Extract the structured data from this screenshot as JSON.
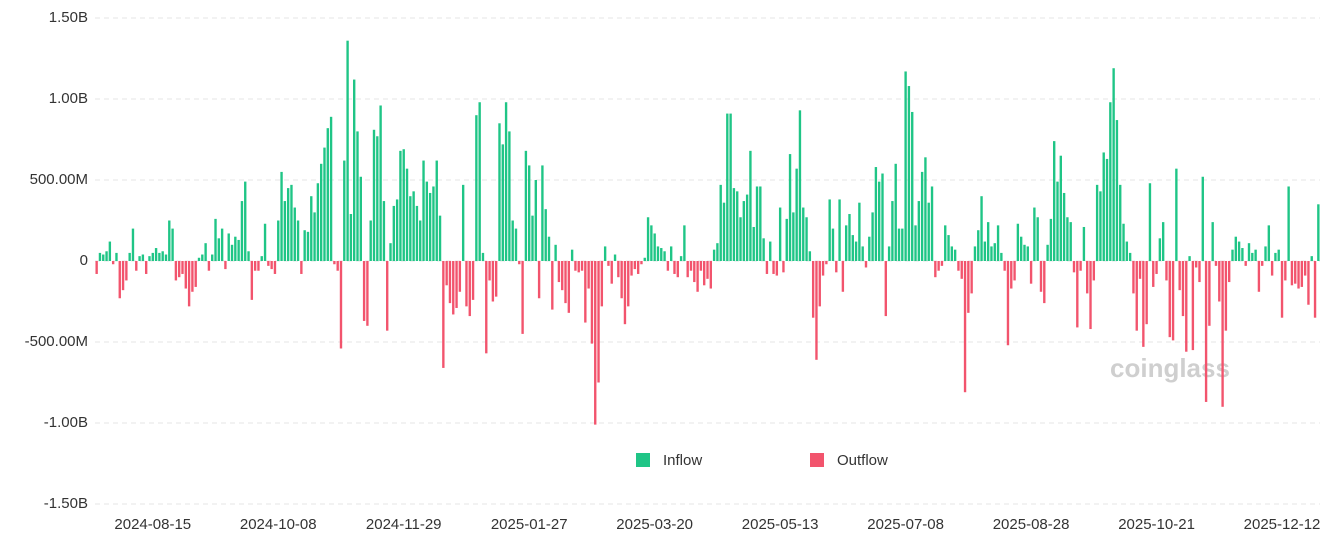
{
  "chart_data": {
    "type": "bar",
    "watermark": "coinglass",
    "legend": [
      {
        "name": "Inflow",
        "color": "#1fc586"
      },
      {
        "name": "Outflow",
        "color": "#f2546d"
      }
    ],
    "ylim": [
      -1500,
      1500
    ],
    "yticks": [
      {
        "value": 1500,
        "label": "1.50B"
      },
      {
        "value": 1000,
        "label": "1.00B"
      },
      {
        "value": 500,
        "label": "500.00M"
      },
      0,
      {
        "value": -500,
        "label": "-500.00M"
      },
      {
        "value": -1000,
        "label": "-1.00B"
      },
      {
        "value": -1500,
        "label": "-1.50B"
      }
    ],
    "grid": true,
    "categories": [
      null,
      null,
      null,
      null,
      null,
      null,
      null,
      null,
      null,
      null,
      null,
      null,
      null,
      null,
      null,
      null,
      null,
      "2024-08-15",
      null,
      null,
      null,
      null,
      null,
      null,
      null,
      null,
      null,
      null,
      null,
      null,
      null,
      null,
      null,
      null,
      null,
      null,
      null,
      null,
      null,
      null,
      null,
      null,
      null,
      null,
      null,
      null,
      null,
      null,
      null,
      null,
      null,
      null,
      null,
      null,
      null,
      "2024-10-08",
      null,
      null,
      null,
      null,
      null,
      null,
      null,
      null,
      null,
      null,
      null,
      null,
      null,
      null,
      null,
      null,
      null,
      null,
      null,
      null,
      null,
      null,
      null,
      null,
      null,
      null,
      null,
      null,
      null,
      null,
      null,
      null,
      null,
      null,
      null,
      null,
      null,
      "2024-11-29",
      null,
      null,
      null,
      null,
      null,
      null,
      null,
      null,
      null,
      null,
      null,
      null,
      null,
      null,
      null,
      null,
      null,
      null,
      null,
      null,
      null,
      null,
      null,
      null,
      null,
      null,
      null,
      null,
      null,
      null,
      null,
      null,
      null,
      null,
      null,
      null,
      null,
      "2025-01-27",
      null,
      null,
      null,
      null,
      null,
      null,
      null,
      null,
      null,
      null,
      null,
      null,
      null,
      null,
      null,
      null,
      null,
      null,
      null,
      null,
      null,
      null,
      null,
      null,
      null,
      null,
      null,
      null,
      null,
      null,
      null,
      null,
      null,
      null,
      null,
      null,
      null,
      "2025-03-20",
      null,
      null,
      null,
      null,
      null,
      null,
      null,
      null,
      null,
      null,
      null,
      null,
      null,
      null,
      null,
      null,
      null,
      null,
      null,
      null,
      null,
      null,
      null,
      null,
      null,
      null,
      null,
      null,
      null,
      null,
      null,
      null,
      null,
      null,
      null,
      null,
      null,
      "2025-05-13",
      null,
      null,
      null,
      null,
      null,
      null,
      null,
      null,
      null,
      null,
      null,
      null,
      null,
      null,
      null,
      null,
      null,
      null,
      null,
      null,
      null,
      null,
      null,
      null,
      null,
      null,
      null,
      null,
      null,
      null,
      null,
      null,
      null,
      null,
      null,
      null,
      null,
      "2025-07-08",
      null,
      null,
      null,
      null,
      null,
      null,
      null,
      null,
      null,
      null,
      null,
      null,
      null,
      null,
      null,
      null,
      null,
      null,
      null,
      null,
      null,
      null,
      null,
      null,
      null,
      null,
      null,
      null,
      null,
      null,
      null,
      null,
      null,
      null,
      null,
      null,
      null,
      "2025-08-28",
      null,
      null,
      null,
      null,
      null,
      null,
      null,
      null,
      null,
      null,
      null,
      null,
      null,
      null,
      null,
      null,
      null,
      null,
      null,
      null,
      null,
      null,
      null,
      null,
      null,
      null,
      null,
      null,
      null,
      null,
      null,
      null,
      null,
      null,
      null,
      null,
      null,
      "2025-10-21",
      null,
      null,
      null,
      null,
      null,
      null,
      null,
      null,
      null,
      null,
      null,
      null,
      null,
      null,
      null,
      null,
      null,
      null,
      null,
      null,
      null,
      null,
      null,
      null,
      null,
      null,
      null,
      null,
      null,
      null,
      null,
      null,
      null,
      null,
      null,
      null,
      null,
      "2025-12-12",
      null,
      null,
      null,
      null,
      null,
      null,
      null,
      null,
      null,
      null,
      null
    ],
    "values": [
      -80,
      50,
      40,
      60,
      120,
      -20,
      50,
      -230,
      -180,
      -120,
      50,
      200,
      -60,
      30,
      40,
      -80,
      30,
      50,
      80,
      50,
      60,
      40,
      250,
      200,
      -120,
      -100,
      -80,
      -170,
      -280,
      -190,
      -160,
      20,
      40,
      110,
      -60,
      40,
      260,
      140,
      200,
      -50,
      170,
      100,
      150,
      130,
      370,
      490,
      60,
      -240,
      -60,
      -60,
      30,
      230,
      -30,
      -50,
      -80,
      250,
      550,
      370,
      450,
      470,
      330,
      250,
      -80,
      190,
      180,
      400,
      300,
      480,
      600,
      700,
      820,
      890,
      -20,
      -60,
      -540,
      620,
      1360,
      290,
      1120,
      800,
      520,
      -370,
      -400,
      250,
      810,
      770,
      960,
      370,
      -430,
      110,
      340,
      380,
      680,
      690,
      570,
      400,
      430,
      340,
      250,
      620,
      490,
      420,
      460,
      620,
      280,
      -660,
      -150,
      -260,
      -330,
      -290,
      -190,
      470,
      -280,
      -340,
      -240,
      900,
      980,
      50,
      -570,
      -120,
      -250,
      -220,
      850,
      720,
      980,
      800,
      250,
      200,
      -20,
      -450,
      680,
      590,
      280,
      500,
      -230,
      590,
      320,
      150,
      -300,
      100,
      -130,
      -180,
      -260,
      -320,
      70,
      -60,
      -70,
      -60,
      -380,
      -170,
      -510,
      -1010,
      -750,
      -280,
      90,
      -30,
      -140,
      40,
      -100,
      -230,
      -390,
      -280,
      -90,
      -50,
      -80,
      -20,
      20,
      270,
      220,
      170,
      90,
      80,
      60,
      -60,
      90,
      -80,
      -100,
      30,
      220,
      -100,
      -60,
      -130,
      -190,
      -60,
      -150,
      -110,
      -170,
      70,
      110,
      470,
      360,
      910,
      910,
      450,
      430,
      270,
      370,
      410,
      680,
      210,
      460,
      460,
      140,
      -80,
      120,
      -80,
      -90,
      330,
      -70,
      260,
      660,
      300,
      570,
      930,
      330,
      270,
      60,
      -350,
      -610,
      -280,
      -90,
      -20,
      380,
      200,
      -70,
      380,
      -190,
      220,
      290,
      160,
      120,
      360,
      90,
      -40,
      150,
      300,
      580,
      490,
      540,
      -340,
      90,
      370,
      600,
      200,
      200,
      1170,
      1080,
      920,
      220,
      370,
      550,
      640,
      360,
      460,
      -100,
      -60,
      -30,
      220,
      160,
      90,
      70,
      -60,
      -110,
      -810,
      -320,
      -200,
      90,
      190,
      400,
      120,
      240,
      90,
      110,
      220,
      50,
      -60,
      -520,
      -170,
      -120,
      230,
      150,
      100,
      90,
      -140,
      330,
      270,
      -190,
      -260,
      100,
      260,
      740,
      490,
      650,
      420,
      270,
      240,
      -70,
      -410,
      -60,
      210,
      -200,
      -420,
      -120,
      470,
      430,
      670,
      630,
      980,
      1190,
      870,
      470,
      230,
      120,
      50,
      -200,
      -430,
      -110,
      -530,
      -390,
      480,
      -160,
      -80,
      140,
      240,
      -120,
      -470,
      -490,
      570,
      -180,
      -340,
      -560,
      30,
      -550,
      -40,
      -130,
      520,
      -870,
      -400,
      240,
      -30,
      -250,
      -900,
      -430,
      -130,
      70,
      150,
      120,
      80,
      -30,
      110,
      50,
      70,
      -190,
      -30,
      90,
      220,
      -90,
      50,
      70,
      -350,
      -120,
      460,
      -150,
      -140,
      -170,
      -160,
      -90,
      -270,
      30,
      -350,
      350
    ]
  }
}
